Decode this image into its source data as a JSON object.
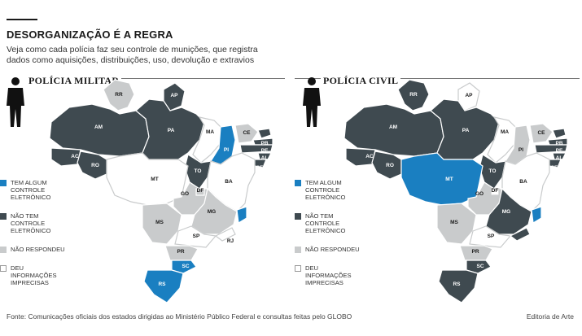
{
  "header": {
    "title": "DESORGANIZAÇÃO É A REGRA",
    "subtitle": "Veja como cada polícia faz seu controle de munições, que registra dados como aquisições, distribuições, uso, devolução e extravios"
  },
  "colors": {
    "tem_controle": "#1a7fc1",
    "nao_tem": "#3f4a50",
    "nao_respondeu": "#c9cbcc",
    "imprecisas": "#ffffff",
    "border": "#ffffff"
  },
  "legend": [
    {
      "key": "tem_controle",
      "label": "TEM ALGUM CONTROLE ELETRÔNICO"
    },
    {
      "key": "nao_tem",
      "label": "NÃO TEM CONTROLE ELETRÔNICO"
    },
    {
      "key": "nao_respondeu",
      "label": "NÃO RESPONDEU"
    },
    {
      "key": "imprecisas",
      "label": "DEU INFORMAÇÕES IMPRECISAS"
    }
  ],
  "maps": [
    {
      "id": "pm",
      "title": "POLÍCIA MILITAR",
      "states": {
        "RR": "nao_respondeu",
        "AP": "nao_tem",
        "AM": "nao_tem",
        "PA": "nao_tem",
        "MA": "imprecisas",
        "PI": "tem_controle",
        "CE": "nao_respondeu",
        "RN": "nao_tem",
        "PB": "nao_tem",
        "PE": "nao_tem",
        "AL": "nao_tem",
        "SE": "nao_tem",
        "AC": "nao_tem",
        "RO": "nao_tem",
        "TO": "nao_tem",
        "BA": "imprecisas",
        "MT": "imprecisas",
        "DF": "nao_respondeu",
        "GO": "nao_respondeu",
        "MG": "nao_respondeu",
        "ES": "tem_controle",
        "MS": "nao_respondeu",
        "SP": "imprecisas",
        "RJ": "imprecisas",
        "PR": "nao_respondeu",
        "SC": "tem_controle",
        "RS": "tem_controle"
      }
    },
    {
      "id": "pc",
      "title": "POLÍCIA CIVIL",
      "states": {
        "RR": "nao_tem",
        "AP": "imprecisas",
        "AM": "nao_tem",
        "PA": "nao_tem",
        "MA": "imprecisas",
        "PI": "nao_respondeu",
        "CE": "nao_respondeu",
        "RN": "nao_tem",
        "PB": "nao_tem",
        "PE": "nao_tem",
        "AL": "nao_tem",
        "SE": "nao_tem",
        "AC": "nao_tem",
        "RO": "nao_tem",
        "TO": "nao_tem",
        "BA": "imprecisas",
        "MT": "tem_controle",
        "DF": "imprecisas",
        "GO": "nao_respondeu",
        "MG": "nao_tem",
        "ES": "tem_controle",
        "MS": "nao_respondeu",
        "SP": "imprecisas",
        "RJ": "nao_tem",
        "PR": "nao_respondeu",
        "SC": "nao_tem",
        "RS": "nao_tem"
      }
    }
  ],
  "footer": {
    "source": "Fonte: Comunicações oficiais dos estados dirigidas ao Ministério Público Federal e consultas feitas pelo GLOBO",
    "credit": "Editoria de Arte"
  }
}
